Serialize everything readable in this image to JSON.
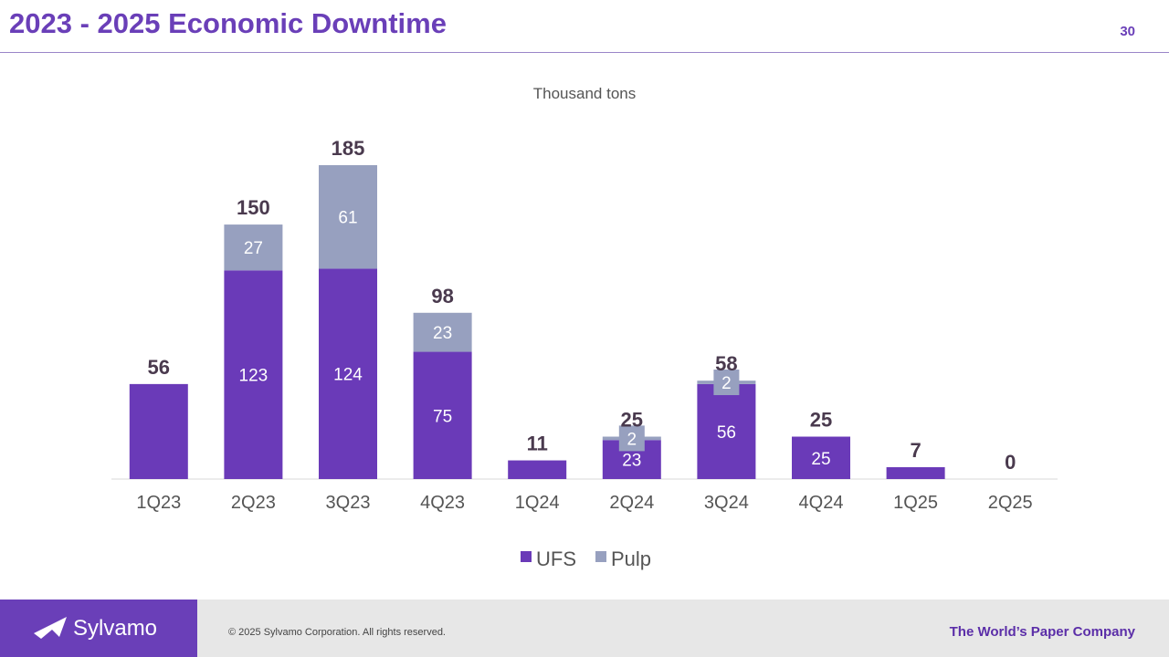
{
  "header": {
    "title": "2023 - 2025 Economic Downtime",
    "page_number": "30"
  },
  "colors": {
    "ufs": "#6a3ab8",
    "pulp": "#97a0bf",
    "accent": "#6a3fb8",
    "label_dark": "#4a3a4e"
  },
  "chart_data": {
    "type": "bar",
    "stacked": true,
    "title": "Thousand tons",
    "categories": [
      "1Q23",
      "2Q23",
      "3Q23",
      "4Q23",
      "1Q24",
      "2Q24",
      "3Q24",
      "4Q24",
      "1Q25",
      "2Q25"
    ],
    "series": [
      {
        "name": "UFS",
        "values": [
          56,
          123,
          124,
          75,
          11,
          23,
          56,
          25,
          7,
          0
        ],
        "segment_labels": [
          "",
          "123",
          "124",
          "75",
          "",
          "23",
          "56",
          "25",
          "",
          ""
        ]
      },
      {
        "name": "Pulp",
        "values": [
          0,
          27,
          61,
          23,
          0,
          2,
          2,
          0,
          0,
          0
        ],
        "segment_labels": [
          "",
          "27",
          "61",
          "23",
          "",
          "2",
          "2",
          "",
          "",
          ""
        ]
      }
    ],
    "totals": [
      "56",
      "150",
      "185",
      "98",
      "11",
      "25",
      "58",
      "25",
      "7",
      "0"
    ],
    "legend": [
      "UFS",
      "Pulp"
    ],
    "ylim": [
      0,
      185
    ]
  },
  "footer": {
    "logo_text": "Sylvamo",
    "copyright": "© 2025 Sylvamo Corporation. All rights reserved.",
    "tagline": "The World’s Paper Company"
  }
}
